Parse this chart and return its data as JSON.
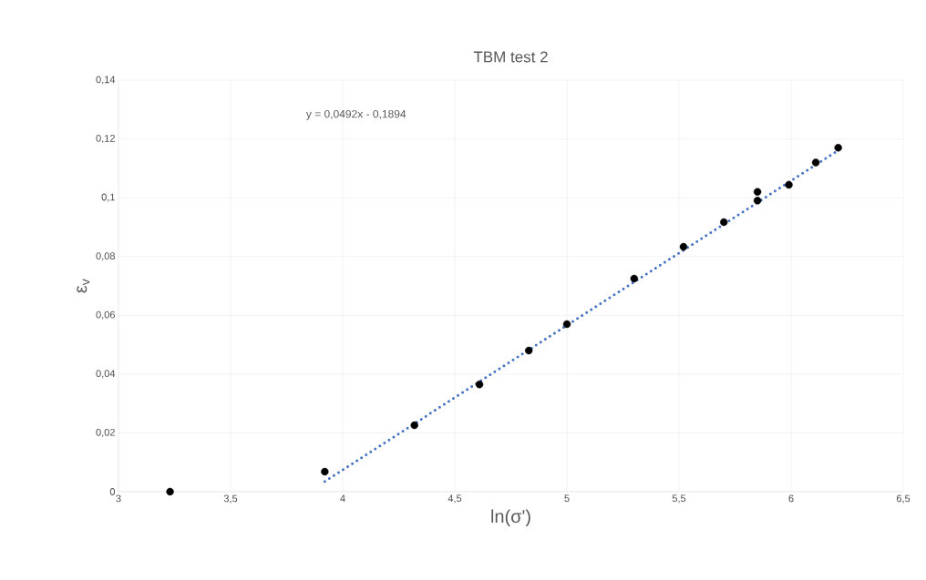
{
  "chart_data": {
    "type": "scatter",
    "title": "TBM test 2",
    "xlabel": "ln(σ')",
    "ylabel": "ε$_{v}$",
    "annotations": [
      "y = 0,0492x - 0,1894"
    ],
    "xlim": [
      3,
      6.5
    ],
    "ylim": [
      0,
      0.14
    ],
    "xticks": [
      3,
      {
        "value": 3.5,
        "label": "3,5"
      },
      4,
      {
        "value": 4.5,
        "label": "4,5"
      },
      5,
      {
        "value": 5.5,
        "label": "5,5"
      },
      6,
      {
        "value": 6.5,
        "label": "6,5"
      }
    ],
    "yticks": [
      0,
      {
        "value": 0.02,
        "label": "0,02"
      },
      {
        "value": 0.04,
        "label": "0,04"
      },
      {
        "value": 0.06,
        "label": "0,06"
      },
      {
        "value": 0.08,
        "label": "0,08"
      },
      {
        "value": 0.1,
        "label": "0,1"
      },
      {
        "value": 0.12,
        "label": "0,12"
      },
      {
        "value": 0.14,
        "label": "0,14"
      }
    ],
    "grid": true,
    "series": [
      {
        "color": "#000000",
        "marker": "circle",
        "x": [
          3.23,
          3.92,
          4.32,
          4.61,
          4.83,
          5.0,
          5.3,
          5.52,
          5.7,
          5.85,
          5.85,
          5.99,
          6.11,
          6.21
        ],
        "values": [
          0.0,
          0.0068,
          0.0226,
          0.0365,
          0.048,
          0.057,
          0.0725,
          0.0833,
          0.0917,
          0.102,
          0.099,
          0.1044,
          0.112,
          0.117
        ]
      },
      {
        "type": "line",
        "color": "#4472c4",
        "line_style": "dotted",
        "marker": "none",
        "x": [
          3.92,
          6.21
        ],
        "values": [
          0.0035,
          0.1161
        ]
      }
    ]
  }
}
